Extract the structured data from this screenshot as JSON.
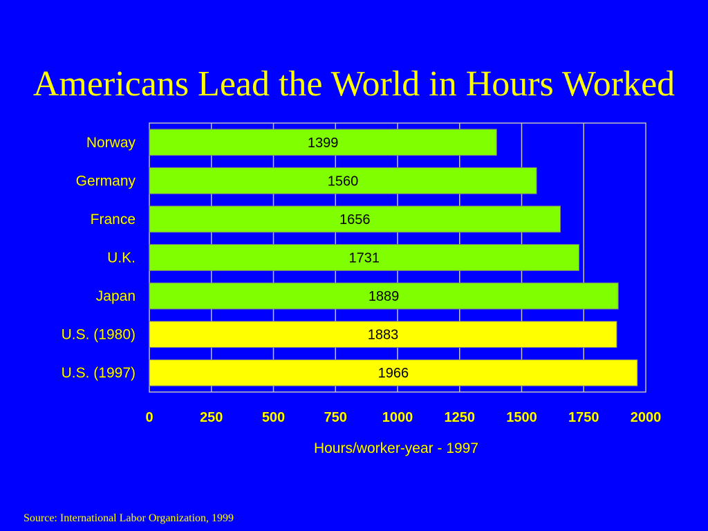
{
  "slide": {
    "title": "Americans Lead the World in Hours Worked",
    "source": "Source: International Labor Organization, 1999"
  },
  "colors": {
    "background": "#0000ff",
    "text": "#ffff00",
    "bar_other": "#80ff00",
    "bar_us": "#ffff00",
    "grid": "#c0c0c0"
  },
  "chart_data": {
    "type": "bar",
    "orientation": "horizontal",
    "categories": [
      "Norway",
      "Germany",
      "France",
      "U.K.",
      "Japan",
      "U.S. (1980)",
      "U.S. (1997)"
    ],
    "values": [
      1399,
      1560,
      1656,
      1731,
      1889,
      1883,
      1966
    ],
    "data_labels": [
      "1399",
      "1560",
      "1656",
      "1731",
      "1889",
      "1883",
      "1966"
    ],
    "bar_colors": [
      "#80ff00",
      "#80ff00",
      "#80ff00",
      "#80ff00",
      "#80ff00",
      "#ffff00",
      "#ffff00"
    ],
    "xlabel": "Hours/worker-year - 1997",
    "ylabel": "",
    "xlim": [
      0,
      2000
    ],
    "xticks": [
      0,
      250,
      500,
      750,
      1000,
      1250,
      1500,
      1750,
      2000
    ],
    "grid": true,
    "legend": "none"
  }
}
